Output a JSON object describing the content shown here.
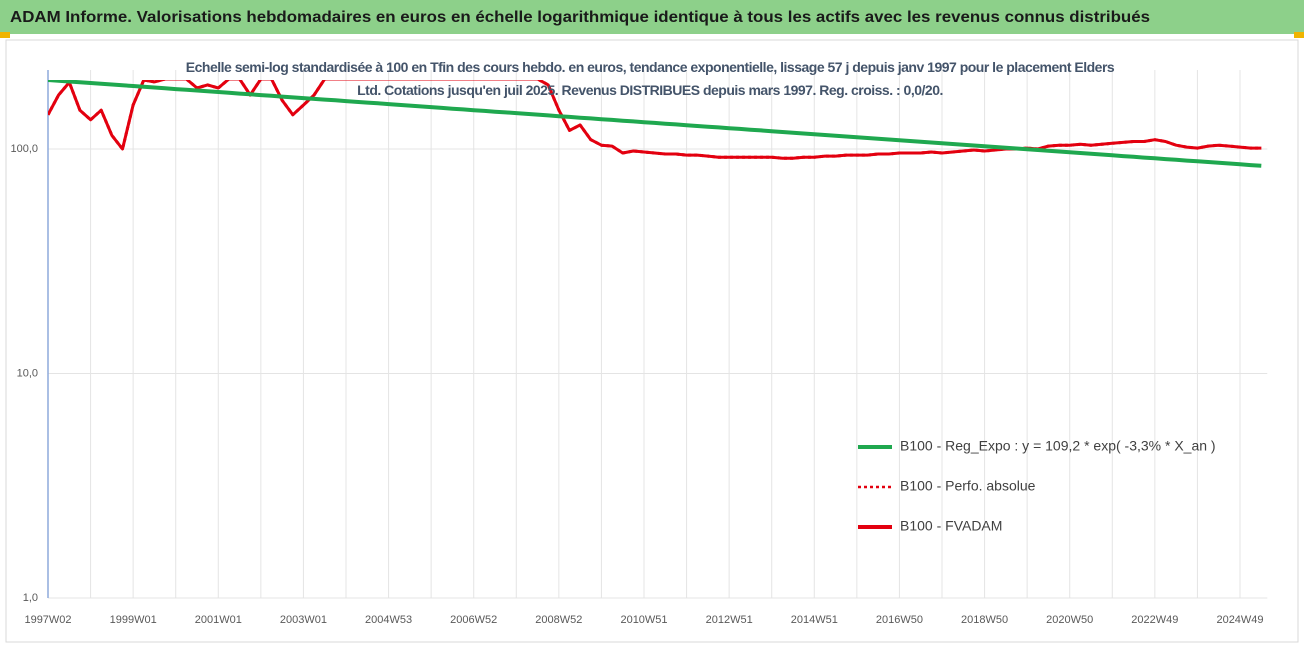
{
  "chart_data": {
    "type": "line",
    "title": "ADAM Informe. Valorisations hebdomadaires en euros en échelle logarithmique identique à tous les actifs avec les revenus connus distribués",
    "subtitle": "Echelle semi-log standardisée à 100 en Tfin des cours hebdo. en euros, tendance exponentielle, lissage 57 j depuis janv 1997 pour le placement Elders Ltd. Cotations jusqu'en juil 2025. Revenus DISTRIBUES depuis mars 1997. Reg. croiss. : 0,0/20.",
    "x": [
      "1997W02",
      null,
      null,
      null,
      null,
      null,
      null,
      null,
      "1999W01",
      null,
      null,
      null,
      null,
      null,
      null,
      null,
      "2001W01",
      null,
      null,
      null,
      null,
      null,
      null,
      null,
      "2003W01",
      null,
      null,
      null,
      null,
      null,
      null,
      null,
      "2004W53",
      null,
      null,
      null,
      null,
      null,
      null,
      null,
      "2006W52",
      null,
      null,
      null,
      null,
      null,
      null,
      null,
      "2008W52",
      null,
      null,
      null,
      null,
      null,
      null,
      null,
      "2010W51",
      null,
      null,
      null,
      null,
      null,
      null,
      null,
      "2012W51",
      null,
      null,
      null,
      null,
      null,
      null,
      null,
      "2014W51",
      null,
      null,
      null,
      null,
      null,
      null,
      null,
      "2016W50",
      null,
      null,
      null,
      null,
      null,
      null,
      null,
      "2018W50",
      null,
      null,
      null,
      null,
      null,
      null,
      null,
      "2020W50",
      null,
      null,
      null,
      null,
      null,
      null,
      null,
      "2022W49",
      null,
      null,
      null,
      null,
      null,
      null,
      null,
      "2024W49",
      null,
      null
    ],
    "series": [
      {
        "name": "B100 - Reg_Expo : y = 109,2 * exp( -3,3% *  X_an )",
        "color": "#1fa84f",
        "style": "solid",
        "values": [
          203.0,
          201.4,
          199.9,
          198.3,
          196.8,
          195.3,
          193.8,
          192.3,
          190.8,
          189.3,
          187.9,
          186.4,
          185.0,
          183.6,
          182.2,
          180.8,
          179.4,
          178.0,
          176.6,
          175.3,
          173.9,
          172.6,
          171.3,
          169.9,
          168.6,
          167.3,
          166.0,
          164.8,
          163.5,
          162.2,
          161.0,
          159.8,
          158.5,
          157.3,
          156.1,
          154.9,
          153.7,
          152.5,
          151.3,
          150.2,
          149.0,
          147.9,
          146.7,
          145.6,
          144.5,
          143.4,
          142.3,
          141.2,
          140.1,
          139.0,
          137.9,
          136.9,
          135.8,
          134.8,
          133.7,
          132.7,
          131.7,
          130.7,
          129.7,
          128.7,
          127.7,
          126.7,
          125.7,
          124.8,
          123.8,
          122.9,
          121.9,
          121.0,
          120.0,
          119.1,
          118.2,
          117.3,
          116.4,
          115.5,
          114.6,
          113.7,
          112.8,
          112.0,
          111.1,
          110.3,
          109.4,
          108.6,
          107.7,
          106.9,
          106.1,
          105.3,
          104.5,
          103.7,
          102.9,
          102.1,
          101.3,
          100.5,
          99.7,
          99.0,
          98.2,
          97.5,
          96.7,
          96.0,
          95.2,
          94.5,
          93.8,
          93.0,
          92.3,
          91.6,
          90.9,
          90.2,
          89.5,
          88.8,
          88.2,
          87.5,
          86.8,
          86.2,
          85.5,
          84.8,
          84.2
        ]
      },
      {
        "name": "B100 - Perfo. absolue",
        "color": "#e3000f",
        "style": "dotted",
        "values": [
          142,
          174,
          198,
          149,
          135,
          149,
          115,
          100,
          157,
          203,
          199,
          205,
          205,
          205,
          187,
          193,
          187,
          205,
          205,
          174,
          205,
          205,
          165,
          142,
          157,
          174,
          205,
          205,
          205,
          205,
          205,
          205,
          205,
          205,
          205,
          205,
          205,
          205,
          205,
          205,
          205,
          205,
          205,
          205,
          205,
          205,
          205,
          193,
          149,
          121,
          128,
          110,
          104,
          103,
          96,
          98,
          97,
          96,
          95,
          95,
          94,
          94,
          93,
          92,
          92,
          92,
          92,
          92,
          92,
          91,
          91,
          92,
          92,
          93,
          93,
          94,
          94,
          94,
          95,
          95,
          96,
          96,
          96,
          97,
          96,
          97,
          98,
          99,
          98,
          99,
          100,
          100,
          101,
          100,
          103,
          104,
          104,
          105,
          104,
          105,
          106,
          107,
          108,
          108,
          110,
          108,
          104,
          102,
          101,
          103,
          104,
          103,
          102,
          101,
          101
        ]
      },
      {
        "name": "B100 - FVADAM",
        "color": "#e3000f",
        "style": "solid",
        "values": [
          142,
          174,
          198,
          149,
          135,
          149,
          115,
          100,
          157,
          203,
          199,
          205,
          205,
          205,
          187,
          193,
          187,
          205,
          205,
          174,
          205,
          205,
          165,
          142,
          157,
          174,
          205,
          205,
          205,
          205,
          205,
          205,
          205,
          205,
          205,
          205,
          205,
          205,
          205,
          205,
          205,
          205,
          205,
          205,
          205,
          205,
          205,
          193,
          149,
          121,
          128,
          110,
          104,
          103,
          96,
          98,
          97,
          96,
          95,
          95,
          94,
          94,
          93,
          92,
          92,
          92,
          92,
          92,
          92,
          91,
          91,
          92,
          92,
          93,
          93,
          94,
          94,
          94,
          95,
          95,
          96,
          96,
          96,
          97,
          96,
          97,
          98,
          99,
          98,
          99,
          100,
          100,
          101,
          100,
          103,
          104,
          104,
          105,
          104,
          105,
          106,
          107,
          108,
          108,
          110,
          108,
          104,
          102,
          101,
          103,
          104,
          103,
          102,
          101,
          101
        ]
      }
    ],
    "log_scale": true,
    "ylim": [
      1,
      203
    ],
    "yticks": [
      {
        "value": 1,
        "label": "1,0"
      },
      {
        "value": 10,
        "label": "10,0"
      },
      {
        "value": 100,
        "label": "100,0"
      }
    ],
    "grid": true,
    "legend": "lower right"
  }
}
